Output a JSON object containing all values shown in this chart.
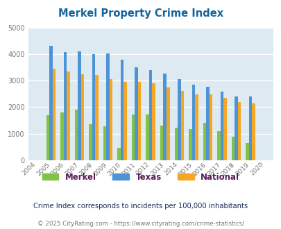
{
  "title": "Merkel Property Crime Index",
  "years": [
    2004,
    2005,
    2006,
    2007,
    2008,
    2009,
    2010,
    2011,
    2012,
    2013,
    2014,
    2015,
    2016,
    2017,
    2018,
    2019,
    2020
  ],
  "merkel": [
    0,
    1700,
    1800,
    1900,
    1350,
    1270,
    480,
    1720,
    1720,
    1310,
    1220,
    1170,
    1400,
    1110,
    880,
    650,
    0
  ],
  "texas": [
    0,
    4300,
    4080,
    4100,
    4000,
    4020,
    3800,
    3500,
    3390,
    3260,
    3060,
    2850,
    2780,
    2580,
    2400,
    2400,
    0
  ],
  "national": [
    0,
    3450,
    3340,
    3250,
    3220,
    3060,
    2960,
    2960,
    2900,
    2750,
    2620,
    2490,
    2470,
    2350,
    2190,
    2150,
    0
  ],
  "merkel_color": "#82c341",
  "texas_color": "#4d94d6",
  "national_color": "#f5a623",
  "bg_color": "#deeaf1",
  "title_color": "#1464a0",
  "ylim": [
    0,
    5000
  ],
  "yticks": [
    0,
    1000,
    2000,
    3000,
    4000,
    5000
  ],
  "subtitle": "Crime Index corresponds to incidents per 100,000 inhabitants",
  "footer": "© 2025 CityRating.com - https://www.cityrating.com/crime-statistics/",
  "subtitle_color": "#1a2a5a",
  "footer_color": "#7a7a7a",
  "legend_label_color": "#5a1a5a"
}
